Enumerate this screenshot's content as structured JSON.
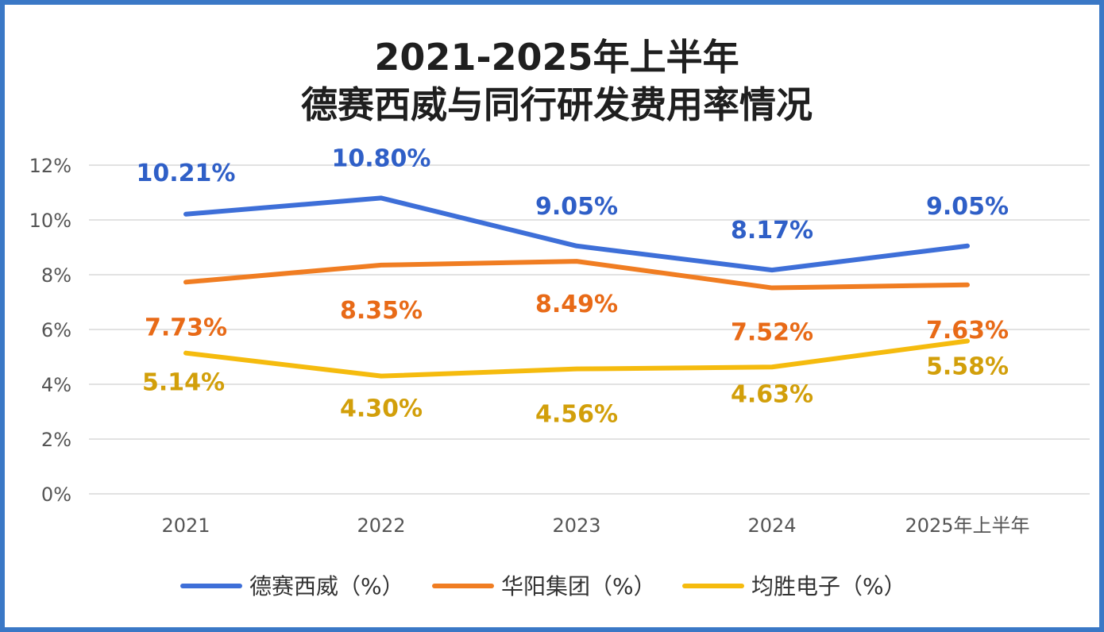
{
  "title": {
    "line1": "2021-2025年上半年",
    "line2": "德赛西威与同行研发费用率情况"
  },
  "colors": {
    "border": "#3a78c6",
    "grid": "#d9d9d9",
    "axis_text": "#555555"
  },
  "chart_data": {
    "type": "line",
    "categories": [
      "2021",
      "2022",
      "2023",
      "2024",
      "2025年上半年"
    ],
    "y_ticks": [
      "0%",
      "2%",
      "4%",
      "6%",
      "8%",
      "10%",
      "12%"
    ],
    "ylim": [
      0,
      12
    ],
    "grid": true,
    "legend_position": "bottom",
    "series": [
      {
        "name": "德赛西威（%）",
        "color": "#3e6fd8",
        "label_color": "#2f5fc7",
        "values": [
          10.21,
          10.8,
          9.05,
          8.17,
          9.05
        ],
        "labels": [
          "10.21%",
          "10.80%",
          "9.05%",
          "8.17%",
          "9.05%"
        ]
      },
      {
        "name": "华阳集团（%）",
        "color": "#f07d22",
        "label_color": "#e86a17",
        "values": [
          7.73,
          8.35,
          8.49,
          7.52,
          7.63
        ],
        "labels": [
          "7.73%",
          "8.35%",
          "8.49%",
          "7.52%",
          "7.63%"
        ]
      },
      {
        "name": "均胜电子（%）",
        "color": "#f5bb0e",
        "label_color": "#d29f0a",
        "values": [
          5.14,
          4.3,
          4.56,
          4.63,
          5.58
        ],
        "labels": [
          "5.14%",
          "4.30%",
          "4.56%",
          "4.63%",
          "5.58%"
        ]
      }
    ]
  }
}
